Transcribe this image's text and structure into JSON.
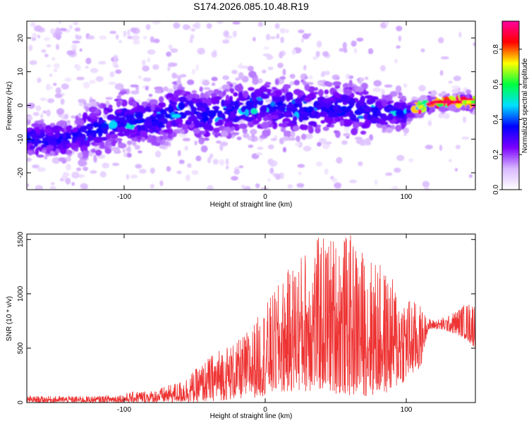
{
  "title": "S174.2026.085.10.48.R19",
  "chart_data": [
    {
      "type": "heatmap",
      "name": "spectrogram",
      "xlabel": "Height of straight line (km)",
      "ylabel": "Frequency (Hz)",
      "xlim": [
        -169,
        149
      ],
      "ylim": [
        -25,
        25
      ],
      "xticks": [
        -100,
        0,
        100
      ],
      "yticks": [
        -20,
        -10,
        0,
        10,
        20
      ],
      "colorbar": {
        "label": "Normalized spectral amplitude",
        "range": [
          0.0,
          0.96
        ],
        "ticks": [
          "0.0",
          "0.2",
          "0.4",
          "0.6",
          "0.8"
        ],
        "tick_values": [
          0.0,
          0.2,
          0.4,
          0.6,
          0.8
        ],
        "colors": [
          "#ffffff",
          "#d9b8ff",
          "#7a00ff",
          "#0000ff",
          "#00e0ff",
          "#00ff40",
          "#ffff00",
          "#ff0000",
          "#ff00a0"
        ]
      },
      "ridge": {
        "x": [
          -169,
          -140,
          -120,
          -100,
          -80,
          -60,
          -40,
          -20,
          0,
          20,
          40,
          60,
          80,
          100,
          120,
          149
        ],
        "freq": [
          -10,
          -10,
          -7,
          -4,
          -5,
          -1,
          -3,
          -1,
          0,
          -1,
          -1,
          -1,
          -2,
          -2,
          1,
          1
        ]
      }
    },
    {
      "type": "line",
      "name": "snr",
      "xlabel": "Height of straight line (km)",
      "ylabel": "SNR (10 * v/v)",
      "xlim": [
        -169,
        149
      ],
      "ylim": [
        0,
        1550
      ],
      "xticks": [
        -100,
        0,
        100
      ],
      "yticks": [
        0,
        500,
        1000,
        1500
      ],
      "color": "#ee3333",
      "envelope": {
        "x": [
          -169,
          -120,
          -100,
          -90,
          -80,
          -60,
          -50,
          -40,
          -30,
          -20,
          -10,
          0,
          10,
          20,
          30,
          40,
          50,
          60,
          70,
          80,
          90,
          100,
          110,
          115,
          120,
          130,
          140,
          149
        ],
        "min": [
          0,
          0,
          0,
          0,
          0,
          0,
          0,
          10,
          20,
          30,
          40,
          60,
          80,
          100,
          100,
          100,
          80,
          60,
          60,
          60,
          100,
          200,
          300,
          650,
          680,
          650,
          600,
          500
        ],
        "max": [
          60,
          60,
          80,
          110,
          110,
          200,
          300,
          420,
          530,
          560,
          700,
          900,
          1100,
          1300,
          1450,
          1550,
          1550,
          1550,
          1400,
          1300,
          1150,
          1000,
          900,
          780,
          760,
          800,
          900,
          950
        ]
      }
    }
  ]
}
